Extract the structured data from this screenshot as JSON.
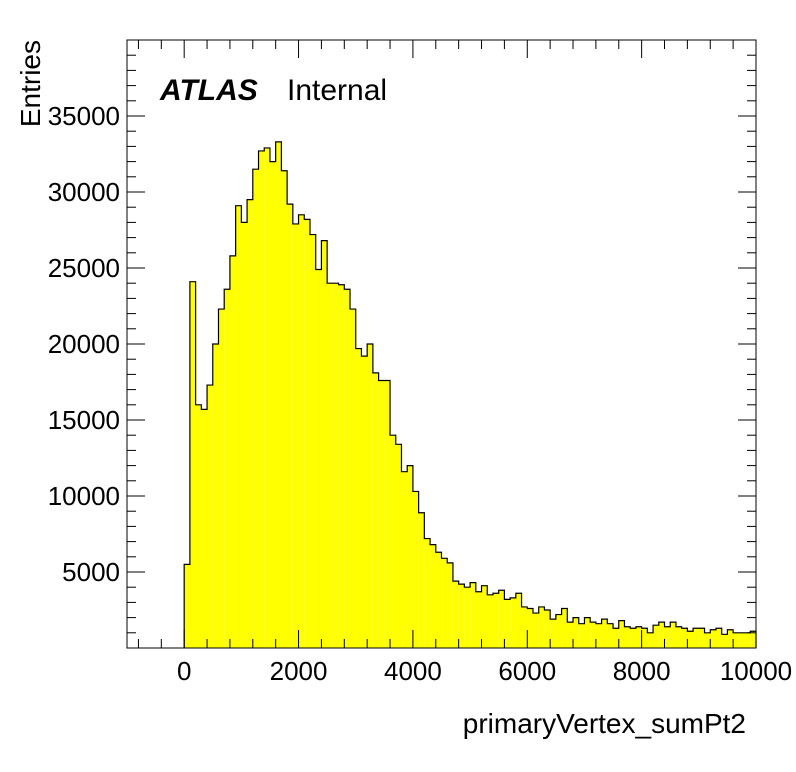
{
  "chart_data": {
    "type": "bar",
    "histogram": true,
    "title": "",
    "xlabel": "primaryVertex_sumPt2",
    "ylabel": "Entries",
    "label_bold": "ATLAS",
    "label_normal": "Internal",
    "xlim": [
      -1000,
      10000
    ],
    "ylim": [
      0,
      40000
    ],
    "xticks": [
      0,
      2000,
      4000,
      6000,
      8000,
      10000
    ],
    "yticks": [
      5000,
      10000,
      15000,
      20000,
      25000,
      30000,
      35000
    ],
    "bin_width": 100,
    "bin_start": 0,
    "fill_color": "#ffff00",
    "line_color": "#000000",
    "values": [
      5500,
      24100,
      16000,
      15700,
      17300,
      20000,
      22300,
      23600,
      25800,
      29100,
      28000,
      29500,
      31500,
      32700,
      32900,
      32000,
      33300,
      31400,
      29200,
      27900,
      28500,
      28200,
      27200,
      24900,
      26800,
      24000,
      24000,
      23900,
      23600,
      22300,
      19700,
      19200,
      20000,
      18100,
      17600,
      17600,
      14000,
      13400,
      11600,
      12000,
      10300,
      8900,
      7200,
      6800,
      6300,
      5900,
      5600,
      4400,
      4200,
      4000,
      4300,
      3700,
      4100,
      3500,
      3600,
      3800,
      3200,
      3300,
      3600,
      2700,
      2600,
      2300,
      2700,
      2500,
      1900,
      2200,
      2600,
      1700,
      2000,
      1600,
      2000,
      1700,
      1600,
      1900,
      1600,
      1300,
      1800,
      1400,
      1300,
      1400,
      1300,
      1000,
      1500,
      1700,
      1400,
      1700,
      1400,
      1300,
      1100,
      1300,
      1300,
      1000,
      1200,
      1300,
      900,
      1200,
      1000,
      1000,
      1000,
      1100
    ]
  }
}
